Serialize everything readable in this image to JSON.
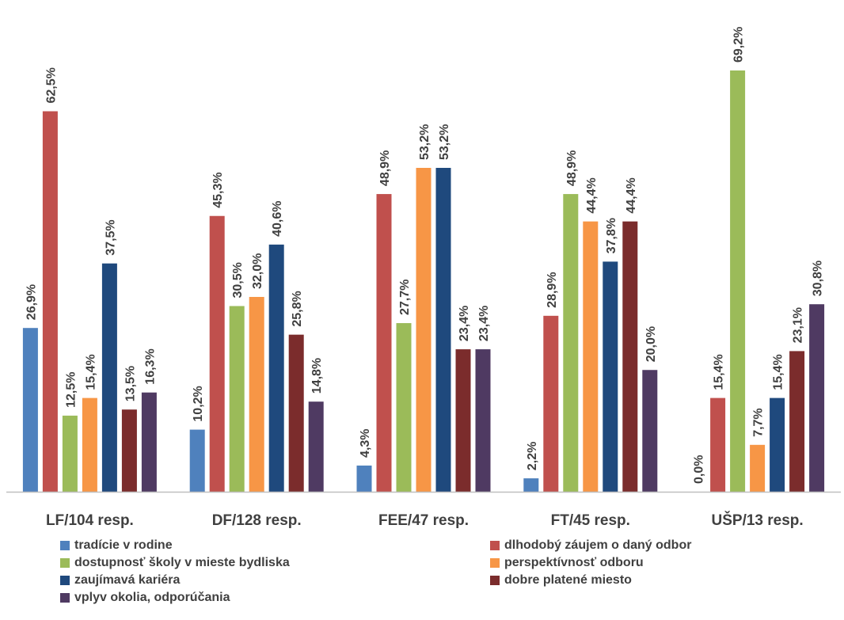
{
  "chart_data": {
    "type": "bar",
    "categories": [
      "LF/104 resp.",
      "DF/128 resp.",
      "FEE/47 resp.",
      "FT/45 resp.",
      "UŠP/13 resp."
    ],
    "series": [
      {
        "name": "tradície v rodine",
        "color": "#4F81BD",
        "values": [
          26.9,
          10.2,
          4.3,
          2.2,
          0.0
        ],
        "labels": [
          "26,9%",
          "10,2%",
          "4,3%",
          "2,2%",
          "0,0%"
        ]
      },
      {
        "name": "dlhodobý záujem o daný odbor",
        "color": "#C0504D",
        "values": [
          62.5,
          45.3,
          48.9,
          28.9,
          15.4
        ],
        "labels": [
          "62,5%",
          "45,3%",
          "48,9%",
          "28,9%",
          "15,4%"
        ]
      },
      {
        "name": "dostupnosť školy v mieste bydliska",
        "color": "#9BBB59",
        "values": [
          12.5,
          30.5,
          27.7,
          48.9,
          69.2
        ],
        "labels": [
          "12,5%",
          "30,5%",
          "27,7%",
          "48,9%",
          "69,2%"
        ]
      },
      {
        "name": "perspektívnosť odboru",
        "color": "#F79646",
        "values": [
          15.4,
          32.0,
          53.2,
          44.4,
          7.7
        ],
        "labels": [
          "15,4%",
          "32,0%",
          "53,2%",
          "44,4%",
          "7,7%"
        ]
      },
      {
        "name": "zaujímavá kariéra",
        "color": "#1F497D",
        "values": [
          37.5,
          40.6,
          53.2,
          37.8,
          15.4
        ],
        "labels": [
          "37,5%",
          "40,6%",
          "53,2%",
          "37,8%",
          "15,4%"
        ]
      },
      {
        "name": "dobre platené miesto",
        "color": "#7B2C2C",
        "values": [
          13.5,
          25.8,
          23.4,
          44.4,
          23.1
        ],
        "labels": [
          "13,5%",
          "25,8%",
          "23,4%",
          "44,4%",
          "23,1%"
        ]
      },
      {
        "name": "vplyv okolia, odporúčania",
        "color": "#4F3A62",
        "values": [
          16.3,
          14.8,
          23.4,
          20.0,
          30.8
        ],
        "labels": [
          "16,3%",
          "14,8%",
          "23,4%",
          "20,0%",
          "30,8%"
        ]
      }
    ],
    "title": "",
    "xlabel": "",
    "ylabel": "",
    "ylim": [
      0,
      70
    ],
    "grid": false,
    "legend_position": "bottom",
    "axis_color": "#BFBFBF"
  }
}
